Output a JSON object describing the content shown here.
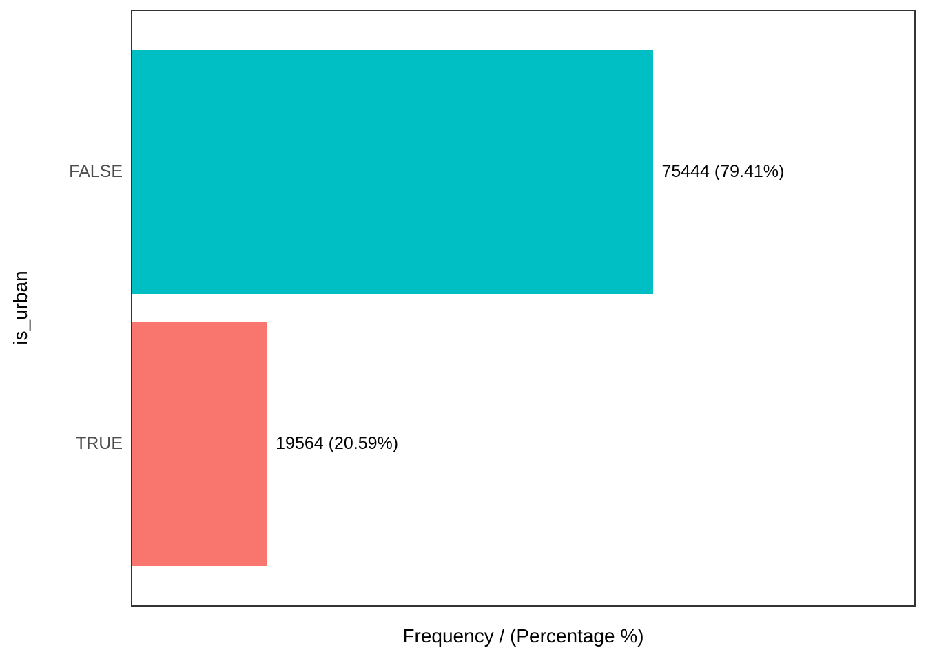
{
  "chart_data": {
    "type": "bar",
    "orientation": "horizontal",
    "title": "",
    "xlabel": "Frequency / (Percentage %)",
    "ylabel": "is_urban",
    "categories": [
      "FALSE",
      "TRUE"
    ],
    "values": [
      75444,
      19564
    ],
    "percentages": [
      79.41,
      20.59
    ],
    "bar_labels": [
      "75444 (79.41%)",
      "19564 (20.59%)"
    ],
    "series_colors": [
      "#00BFC4",
      "#F8766D"
    ],
    "xlim": [
      0,
      113200
    ],
    "grid": false,
    "legend_position": "none",
    "panel_border_color": "#333333",
    "tick_label_color": "#4d4d4d",
    "label_text_color": "#000000"
  }
}
